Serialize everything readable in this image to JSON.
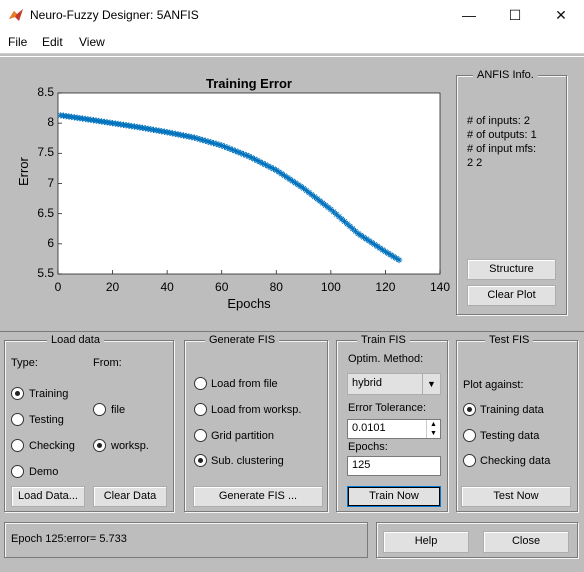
{
  "window": {
    "title": "Neuro-Fuzzy Designer: 5ANFIS",
    "minimize_glyph": "—",
    "maximize_glyph": "☐",
    "close_glyph": "✕"
  },
  "menu": {
    "file": "File",
    "edit": "Edit",
    "view": "View"
  },
  "chart_data": {
    "type": "scatter",
    "title": "Training Error",
    "xlabel": "Epochs",
    "ylabel": "Error",
    "xlim": [
      0,
      140
    ],
    "ylim": [
      5.5,
      8.5
    ],
    "xticks": [
      "0",
      "20",
      "40",
      "60",
      "80",
      "100",
      "120",
      "140"
    ],
    "yticks": [
      "8.5",
      "8",
      "7.5",
      "7",
      "6.5",
      "6",
      "5.5"
    ],
    "marker": "*",
    "color": "#0072bd",
    "x": [
      1,
      10,
      20,
      30,
      40,
      50,
      60,
      70,
      80,
      90,
      100,
      110,
      120,
      125
    ],
    "y": [
      8.13,
      8.07,
      8.0,
      7.93,
      7.85,
      7.76,
      7.63,
      7.45,
      7.22,
      6.92,
      6.57,
      6.17,
      5.87,
      5.733
    ]
  },
  "anfis_info": {
    "title": "ANFIS Info.",
    "inputs": "# of inputs: 2",
    "outputs": "# of outputs: 1",
    "input_mfs": "# of input mfs:",
    "mfs_values": "2  2",
    "structure_button": "Structure",
    "clear_plot_button": "Clear Plot"
  },
  "load_data": {
    "title": "Load data",
    "type_label": "Type:",
    "from_label": "From:",
    "types": {
      "training": "Training",
      "testing": "Testing",
      "checking": "Checking",
      "demo": "Demo"
    },
    "from": {
      "file": "file",
      "worksp": "worksp."
    },
    "load_button": "Load Data...",
    "clear_button": "Clear Data"
  },
  "generate_fis": {
    "title": "Generate FIS",
    "options": {
      "from_file": "Load from file",
      "from_worksp": "Load from worksp.",
      "grid": "Grid partition",
      "sub": "Sub. clustering"
    },
    "button": "Generate FIS ..."
  },
  "train_fis": {
    "title": "Train FIS",
    "optim_label": "Optim. Method:",
    "optim_value": "hybrid",
    "tolerance_label": "Error Tolerance:",
    "tolerance_value": "0.0101",
    "epochs_label": "Epochs:",
    "epochs_value": "125",
    "button": "Train Now"
  },
  "test_fis": {
    "title": "Test FIS",
    "plot_against": "Plot against:",
    "options": {
      "training": "Training data",
      "testing": "Testing data",
      "checking": "Checking data"
    },
    "button": "Test Now"
  },
  "status": {
    "text": "Epoch 125:error= 5.733"
  },
  "bottom": {
    "help": "Help",
    "close": "Close"
  }
}
